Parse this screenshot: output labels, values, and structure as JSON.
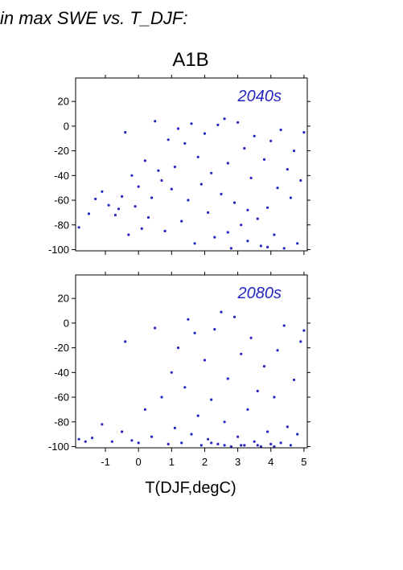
{
  "heading": "in max SWE vs. T_DJF:",
  "colors": {
    "points": "#2626c0",
    "axis": "#000000"
  },
  "chart_data": {
    "type": "scatter",
    "title": "A1B",
    "xlabel": "T(DJF,degC)",
    "ylabel": "",
    "xlim": [
      -1.9,
      5.1
    ],
    "ylim": [
      -101,
      39
    ],
    "xticks": [
      -1,
      0,
      1,
      2,
      3,
      4,
      5
    ],
    "yticks": [
      20,
      0,
      -20,
      -40,
      -60,
      -80,
      -100
    ],
    "grid": false,
    "marker_color": "#2626c0",
    "panels": [
      {
        "label": "2040s",
        "points": [
          [
            -1.8,
            -82
          ],
          [
            -1.5,
            -71
          ],
          [
            -1.3,
            -59
          ],
          [
            -1.1,
            -53
          ],
          [
            -0.9,
            -64
          ],
          [
            -0.7,
            -72
          ],
          [
            -0.6,
            -67
          ],
          [
            -0.5,
            -57
          ],
          [
            -0.4,
            -5
          ],
          [
            -0.3,
            -88
          ],
          [
            -0.2,
            -40
          ],
          [
            -0.1,
            -65
          ],
          [
            0.0,
            -49
          ],
          [
            0.1,
            -83
          ],
          [
            0.2,
            -28
          ],
          [
            0.3,
            -74
          ],
          [
            0.4,
            -58
          ],
          [
            0.5,
            4
          ],
          [
            0.6,
            -36
          ],
          [
            0.7,
            -44
          ],
          [
            0.8,
            -85
          ],
          [
            0.9,
            -11
          ],
          [
            1.0,
            -51
          ],
          [
            1.1,
            -33
          ],
          [
            1.2,
            -2
          ],
          [
            1.3,
            -77
          ],
          [
            1.4,
            -14
          ],
          [
            1.5,
            -60
          ],
          [
            1.6,
            2
          ],
          [
            1.7,
            -95
          ],
          [
            1.8,
            -25
          ],
          [
            1.9,
            -47
          ],
          [
            2.0,
            -6
          ],
          [
            2.1,
            -70
          ],
          [
            2.2,
            -38
          ],
          [
            2.3,
            -90
          ],
          [
            2.4,
            1
          ],
          [
            2.5,
            -55
          ],
          [
            2.6,
            6
          ],
          [
            2.7,
            -30
          ],
          [
            2.8,
            -99
          ],
          [
            2.9,
            -62
          ],
          [
            3.0,
            3
          ],
          [
            3.1,
            -80
          ],
          [
            3.2,
            -18
          ],
          [
            3.3,
            -93
          ],
          [
            3.4,
            -42
          ],
          [
            3.5,
            -8
          ],
          [
            3.6,
            -75
          ],
          [
            3.7,
            -97
          ],
          [
            3.8,
            -27
          ],
          [
            3.9,
            -66
          ],
          [
            4.0,
            -12
          ],
          [
            4.1,
            -88
          ],
          [
            4.2,
            -50
          ],
          [
            4.3,
            -3
          ],
          [
            4.4,
            -99
          ],
          [
            4.5,
            -35
          ],
          [
            4.6,
            -58
          ],
          [
            4.7,
            -20
          ],
          [
            4.8,
            -95
          ],
          [
            4.9,
            -44
          ],
          [
            5.0,
            -5
          ],
          [
            2.7,
            -86
          ],
          [
            3.3,
            -68
          ],
          [
            3.9,
            -98
          ]
        ]
      },
      {
        "label": "2080s",
        "points": [
          [
            -1.8,
            -94
          ],
          [
            -1.6,
            -96
          ],
          [
            -1.4,
            -93
          ],
          [
            -1.1,
            -82
          ],
          [
            -0.8,
            -96
          ],
          [
            -0.5,
            -88
          ],
          [
            -0.4,
            -15
          ],
          [
            -0.2,
            -95
          ],
          [
            0.0,
            -97
          ],
          [
            0.2,
            -70
          ],
          [
            0.4,
            -92
          ],
          [
            0.5,
            -4
          ],
          [
            0.7,
            -60
          ],
          [
            0.9,
            -98
          ],
          [
            1.0,
            -40
          ],
          [
            1.1,
            -85
          ],
          [
            1.2,
            -20
          ],
          [
            1.3,
            -97
          ],
          [
            1.4,
            -52
          ],
          [
            1.5,
            3
          ],
          [
            1.6,
            -90
          ],
          [
            1.7,
            -8
          ],
          [
            1.8,
            -75
          ],
          [
            1.9,
            -99
          ],
          [
            2.0,
            -30
          ],
          [
            2.1,
            -94
          ],
          [
            2.2,
            -62
          ],
          [
            2.3,
            -5
          ],
          [
            2.4,
            -98
          ],
          [
            2.5,
            9
          ],
          [
            2.6,
            -80
          ],
          [
            2.7,
            -45
          ],
          [
            2.8,
            -100
          ],
          [
            2.9,
            5
          ],
          [
            3.0,
            -92
          ],
          [
            3.1,
            -25
          ],
          [
            3.2,
            -99
          ],
          [
            3.3,
            -70
          ],
          [
            3.4,
            -12
          ],
          [
            3.5,
            -96
          ],
          [
            3.6,
            -55
          ],
          [
            3.7,
            -100
          ],
          [
            3.8,
            -35
          ],
          [
            3.9,
            -88
          ],
          [
            4.0,
            -98
          ],
          [
            4.1,
            -60
          ],
          [
            4.2,
            -22
          ],
          [
            4.3,
            -97
          ],
          [
            4.4,
            -2
          ],
          [
            4.5,
            -84
          ],
          [
            4.6,
            -99
          ],
          [
            4.7,
            -46
          ],
          [
            4.8,
            -90
          ],
          [
            4.9,
            -15
          ],
          [
            5.0,
            -6
          ],
          [
            2.6,
            -99
          ],
          [
            3.1,
            -99
          ],
          [
            3.6,
            -99
          ],
          [
            4.1,
            -100
          ],
          [
            2.2,
            -97
          ]
        ]
      }
    ]
  }
}
